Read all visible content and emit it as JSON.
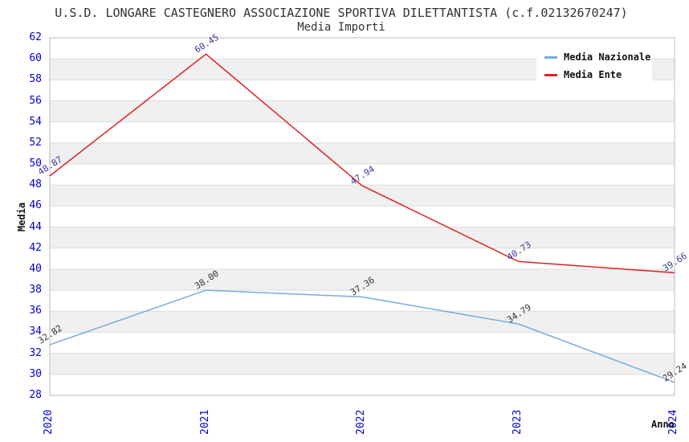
{
  "chart_data": {
    "type": "line",
    "title": "U.S.D. LONGARE CASTEGNERO ASSOCIAZIONE SPORTIVA DILETTANTISTA (c.f.02132670247)",
    "subtitle": "Media Importi",
    "xlabel": "Anno",
    "ylabel": "Media",
    "categories": [
      "2020",
      "2021",
      "2022",
      "2023",
      "2024"
    ],
    "ylim": [
      28,
      62
    ],
    "y_step": 2,
    "y_ticks": [
      62,
      60,
      58,
      56,
      54,
      52,
      50,
      48,
      46,
      44,
      42,
      40,
      38,
      36,
      34,
      32,
      30,
      28
    ],
    "grid": "horizontal-bands-alternating",
    "legend_position": "top-right",
    "series": [
      {
        "name": "Media Nazionale",
        "color": "#7aabdc",
        "label_color": "#333333",
        "values": [
          32.82,
          38.0,
          37.36,
          34.79,
          29.24
        ],
        "labels": [
          "32.82",
          "38.00",
          "37.36",
          "34.79",
          "29.24"
        ]
      },
      {
        "name": "Media Ente",
        "color": "#e02020",
        "label_color": "#3a3a9c",
        "values": [
          48.87,
          60.45,
          47.94,
          40.73,
          39.66
        ],
        "labels": [
          "48.87",
          "60.45",
          "47.94",
          "40.73",
          "39.66"
        ]
      }
    ],
    "colors": {
      "tick_label": "#0000cc",
      "title_text": "#333333",
      "band_fill": "#f0f0f0",
      "gridline": "#dcdcdc",
      "axis_border": "#bbbbbb",
      "background": "#ffffff"
    }
  }
}
